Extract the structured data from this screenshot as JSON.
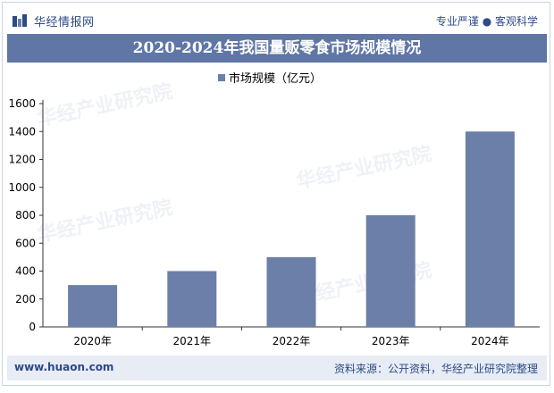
{
  "header": {
    "logo_text": "华经情报网",
    "slogan": "专业严谨 ● 客观科学"
  },
  "colors": {
    "accent": "#5f76a6",
    "bar": "#6b7fa8",
    "text_dark": "#2e4a86"
  },
  "chart_data": {
    "type": "bar",
    "title": "2020-2024年我国量贩零食市场规模情况",
    "categories": [
      "2020年",
      "2021年",
      "2022年",
      "2023年",
      "2024年"
    ],
    "series": [
      {
        "name": "市场规模（亿元）",
        "values": [
          300,
          400,
          500,
          800,
          1400
        ]
      }
    ],
    "xlabel": "",
    "ylabel": "",
    "ylim": [
      0,
      1600
    ],
    "yticks": [
      0,
      200,
      400,
      600,
      800,
      1000,
      1200,
      1400,
      1600
    ],
    "legend": "top-center",
    "grid": false
  },
  "footer": {
    "website": "www.huaon.com",
    "source": "资料来源：公开资料，华经产业研究院整理"
  }
}
